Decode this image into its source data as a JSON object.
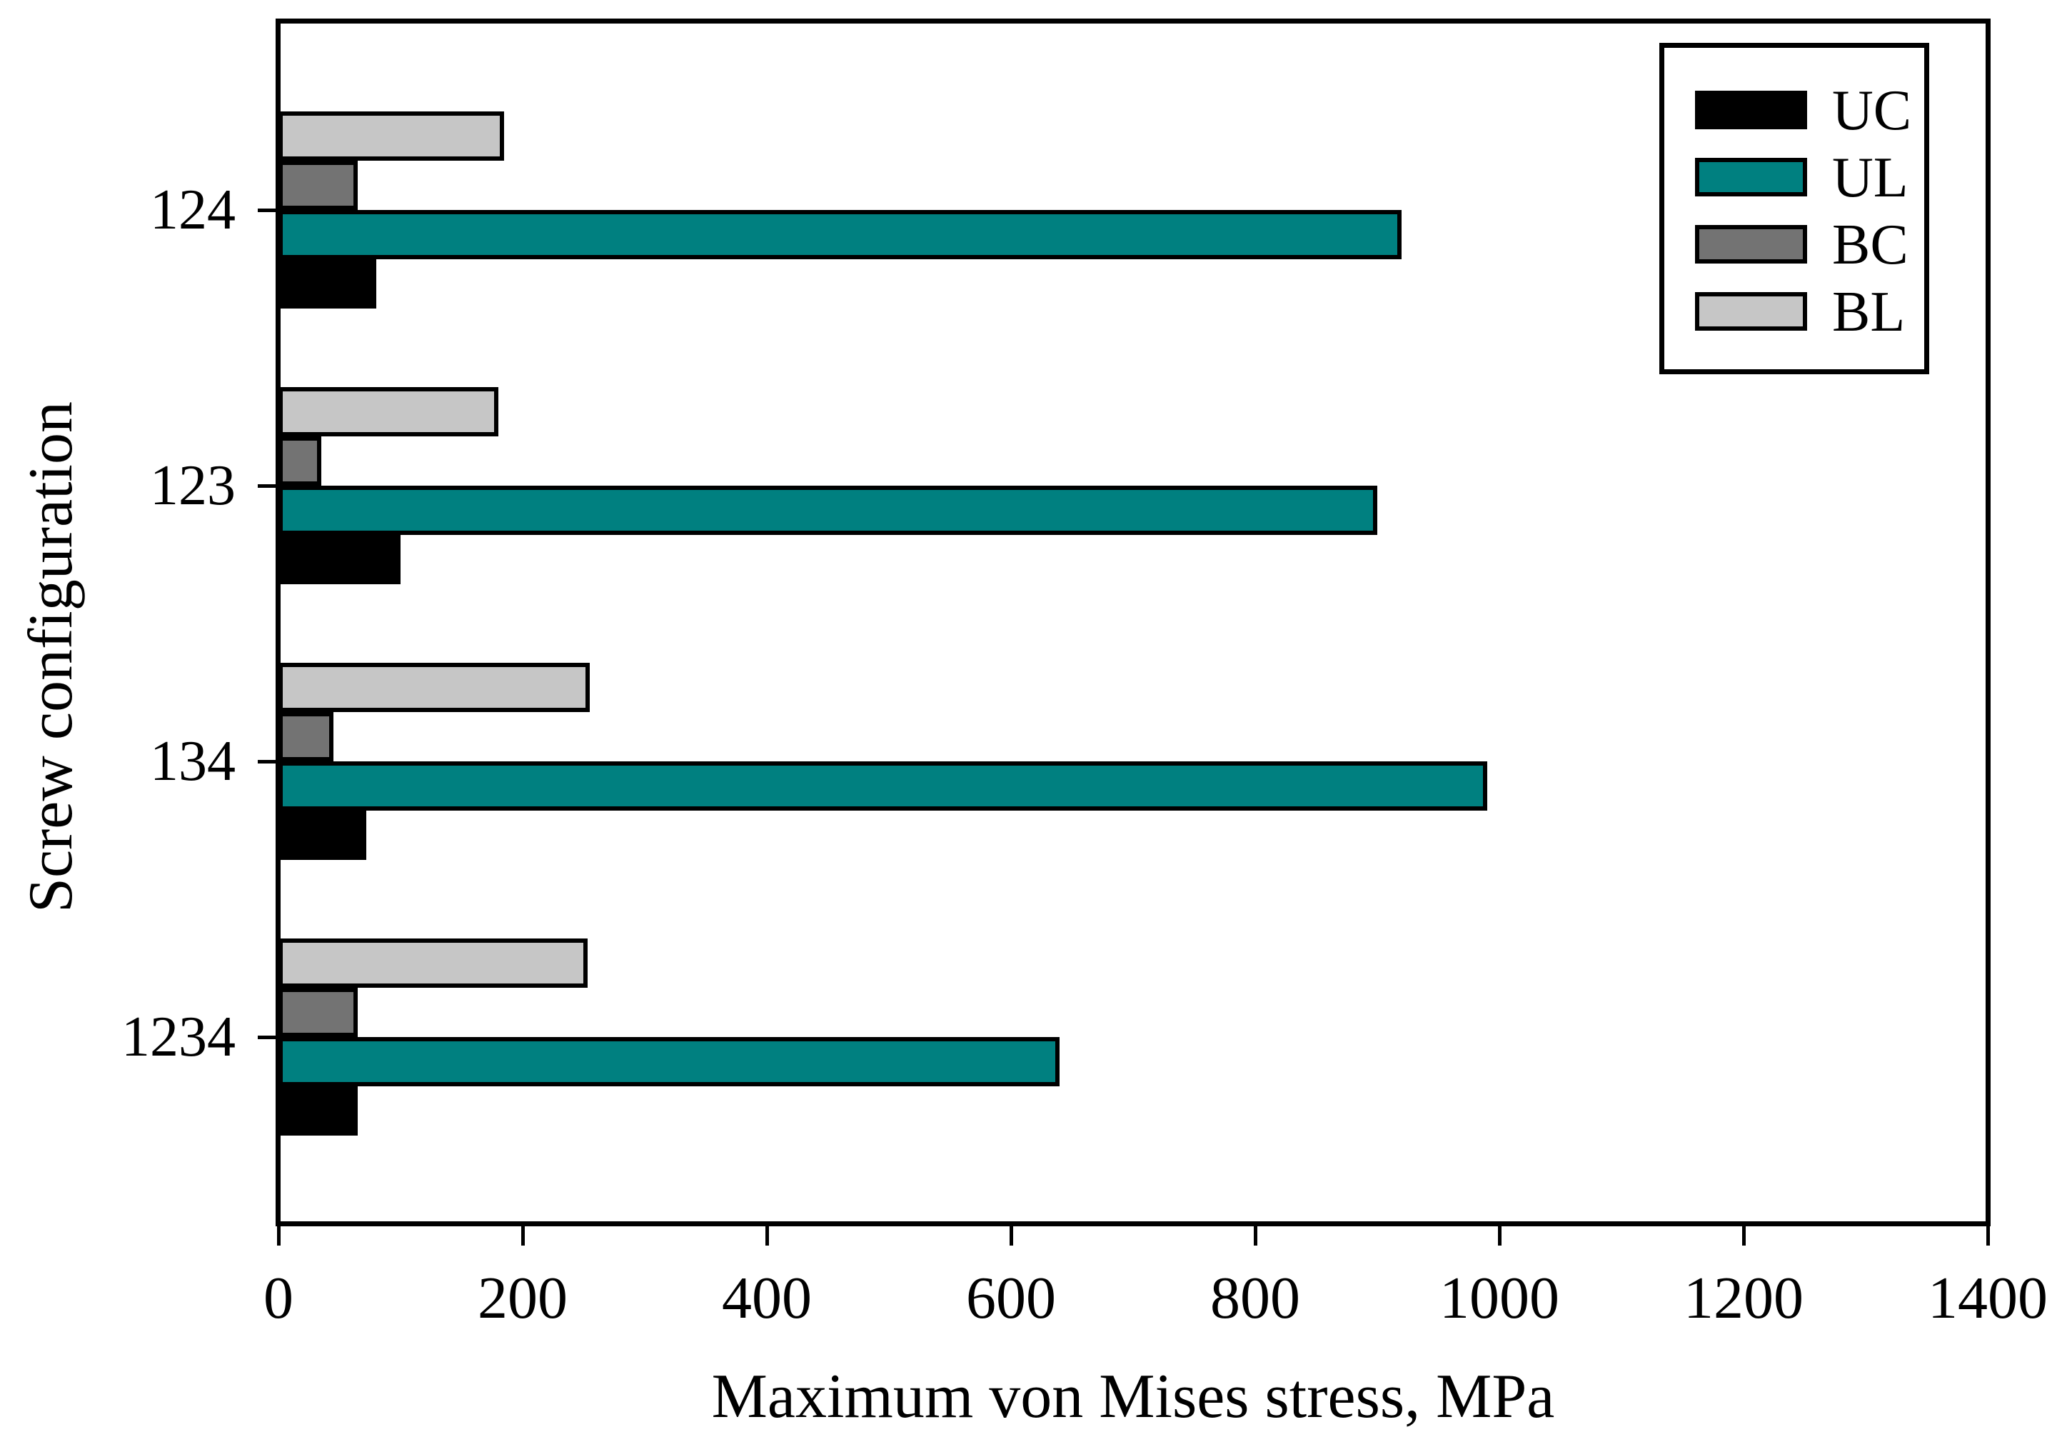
{
  "chart_data": {
    "type": "bar",
    "orientation": "horizontal",
    "xlabel": "Maximum von Mises stress, MPa",
    "ylabel": "Screw configuration",
    "categories": [
      "124",
      "123",
      "134",
      "1234"
    ],
    "series": [
      {
        "name": "UC",
        "color": "#000000",
        "values": [
          80,
          100,
          72,
          65
        ]
      },
      {
        "name": "UL",
        "color": "#008080",
        "values": [
          920,
          900,
          990,
          640
        ]
      },
      {
        "name": "BC",
        "color": "#737373",
        "values": [
          65,
          35,
          45,
          65
        ]
      },
      {
        "name": "BL",
        "color": "#c6c6c6",
        "values": [
          185,
          180,
          255,
          253
        ]
      }
    ],
    "bar_group_order_top_to_bottom": [
      "BL",
      "BC",
      "UL",
      "UC"
    ],
    "xlim": [
      0,
      1400
    ],
    "xticks": [
      0,
      200,
      400,
      600,
      800,
      1000,
      1200,
      1400
    ],
    "legend_position": "top-right",
    "legend_labels": [
      "UC",
      "UL",
      "BC",
      "BL"
    ],
    "grid": false,
    "frame_color": "#000000",
    "background_color": "#ffffff"
  }
}
